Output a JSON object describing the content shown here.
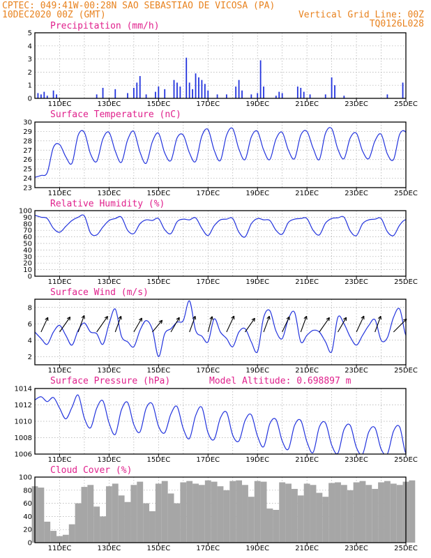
{
  "header": {
    "line1": "CPTEC:  049:41W-00:28N  SAO SEBASTIAO DE VICOSA (PA)",
    "line2_left": "10DEC2020 00Z (GMT)",
    "line2_right": "Vertical Grid Line: 00Z",
    "line3_right": "TQ0126L028",
    "text_color": "#e8821e"
  },
  "colors": {
    "title": "#e0208c",
    "series": "#2233dd",
    "cloud": "#a6a6a6",
    "wind_arrow": "#000000"
  },
  "x_axis": {
    "start": "10DEC2020 00Z",
    "end": "25DEC2020 00Z",
    "tick_labels": [
      "11DEC",
      "13DEC",
      "15DEC",
      "17DEC",
      "19DEC",
      "21DEC",
      "23DEC",
      "25DEC"
    ]
  },
  "chart_data": [
    {
      "type": "bar",
      "title": "Precipitation (mm/h)",
      "ylim": [
        0,
        5
      ],
      "yticks": [
        "0",
        "1",
        "2",
        "3",
        "4",
        "5"
      ],
      "grid": true,
      "bars": [
        {
          "x": "10DEC 03Z",
          "value": 0.4
        },
        {
          "x": "10DEC 06Z",
          "value": 0.3
        },
        {
          "x": "10DEC 09Z",
          "value": 0.5
        },
        {
          "x": "10DEC 12Z",
          "value": 0.2
        },
        {
          "x": "10DEC 18Z",
          "value": 0.6
        },
        {
          "x": "10DEC 21Z",
          "value": 0.3
        },
        {
          "x": "12DEC 12Z",
          "value": 0.3
        },
        {
          "x": "12DEC 18Z",
          "value": 0.8
        },
        {
          "x": "13DEC 06Z",
          "value": 0.7
        },
        {
          "x": "13DEC 18Z",
          "value": 0.4
        },
        {
          "x": "14DEC 00Z",
          "value": 0.8
        },
        {
          "x": "14DEC 03Z",
          "value": 1.2
        },
        {
          "x": "14DEC 06Z",
          "value": 1.7
        },
        {
          "x": "14DEC 12Z",
          "value": 0.3
        },
        {
          "x": "14DEC 21Z",
          "value": 0.5
        },
        {
          "x": "15DEC 00Z",
          "value": 0.9
        },
        {
          "x": "15DEC 06Z",
          "value": 0.7
        },
        {
          "x": "15DEC 15Z",
          "value": 1.4
        },
        {
          "x": "15DEC 18Z",
          "value": 1.2
        },
        {
          "x": "15DEC 21Z",
          "value": 0.9
        },
        {
          "x": "16DEC 03Z",
          "value": 3.1
        },
        {
          "x": "16DEC 06Z",
          "value": 1.2
        },
        {
          "x": "16DEC 09Z",
          "value": 0.7
        },
        {
          "x": "16DEC 12Z",
          "value": 1.9
        },
        {
          "x": "16DEC 15Z",
          "value": 1.6
        },
        {
          "x": "16DEC 18Z",
          "value": 1.4
        },
        {
          "x": "16DEC 21Z",
          "value": 1.1
        },
        {
          "x": "17DEC 00Z",
          "value": 0.6
        },
        {
          "x": "17DEC 09Z",
          "value": 0.3
        },
        {
          "x": "17DEC 18Z",
          "value": 0.3
        },
        {
          "x": "18DEC 03Z",
          "value": 0.9
        },
        {
          "x": "18DEC 06Z",
          "value": 1.4
        },
        {
          "x": "18DEC 09Z",
          "value": 0.6
        },
        {
          "x": "18DEC 18Z",
          "value": 0.3
        },
        {
          "x": "19DEC 00Z",
          "value": 0.4
        },
        {
          "x": "19DEC 03Z",
          "value": 2.9
        },
        {
          "x": "19DEC 06Z",
          "value": 0.9
        },
        {
          "x": "19DEC 18Z",
          "value": 0.2
        },
        {
          "x": "19DEC 21Z",
          "value": 0.5
        },
        {
          "x": "20DEC 00Z",
          "value": 0.4
        },
        {
          "x": "20DEC 15Z",
          "value": 0.9
        },
        {
          "x": "20DEC 18Z",
          "value": 0.8
        },
        {
          "x": "20DEC 21Z",
          "value": 0.5
        },
        {
          "x": "21DEC 03Z",
          "value": 0.3
        },
        {
          "x": "21DEC 18Z",
          "value": 0.3
        },
        {
          "x": "22DEC 00Z",
          "value": 1.6
        },
        {
          "x": "22DEC 03Z",
          "value": 1.0
        },
        {
          "x": "22DEC 12Z",
          "value": 0.2
        },
        {
          "x": "24DEC 06Z",
          "value": 0.3
        },
        {
          "x": "24DEC 21Z",
          "value": 1.2
        }
      ]
    },
    {
      "type": "line",
      "title": "Surface Temperature (nC)",
      "ylim": [
        23,
        30
      ],
      "yticks": [
        "23",
        "24",
        "25",
        "26",
        "27",
        "28",
        "29",
        "30"
      ],
      "grid": true,
      "series": [
        {
          "x_start": "10DEC 00Z",
          "step_hours": 6,
          "values": [
            24.1,
            24.3,
            24.6,
            27.3,
            27.6,
            26.3,
            25.6,
            28.6,
            28.9,
            26.6,
            25.8,
            28.2,
            28.9,
            26.9,
            25.7,
            28.1,
            29.0,
            26.8,
            25.6,
            27.9,
            28.8,
            26.7,
            25.9,
            28.3,
            28.6,
            26.7,
            25.8,
            28.5,
            29.2,
            27.0,
            25.9,
            28.6,
            29.3,
            27.1,
            26.0,
            28.4,
            29.0,
            27.0,
            26.0,
            28.2,
            28.9,
            27.0,
            26.1,
            28.6,
            29.0,
            27.2,
            26.0,
            28.8,
            29.3,
            27.1,
            26.1,
            28.3,
            28.8,
            26.9,
            26.1,
            28.0,
            28.7,
            26.6,
            26.0,
            28.7,
            28.9,
            27.0
          ]
        }
      ]
    },
    {
      "type": "line",
      "title": "Relative Humidity (%)",
      "ylim": [
        0,
        100
      ],
      "yticks": [
        "0",
        "10",
        "20",
        "30",
        "40",
        "50",
        "60",
        "70",
        "80",
        "90",
        "100"
      ],
      "grid": true,
      "series": [
        {
          "x_start": "10DEC 00Z",
          "step_hours": 6,
          "values": [
            93,
            90,
            88,
            73,
            67,
            76,
            85,
            90,
            92,
            66,
            63,
            75,
            85,
            88,
            90,
            70,
            65,
            80,
            86,
            85,
            88,
            71,
            65,
            83,
            87,
            86,
            89,
            73,
            62,
            77,
            86,
            87,
            88,
            67,
            60,
            80,
            88,
            86,
            85,
            70,
            64,
            82,
            87,
            88,
            88,
            70,
            63,
            81,
            88,
            89,
            90,
            69,
            62,
            80,
            86,
            87,
            88,
            68,
            62,
            78,
            86,
            77
          ]
        }
      ]
    },
    {
      "type": "line",
      "title": "Surface Wind (m/s)",
      "ylim": [
        1,
        9
      ],
      "yticks": [
        "2",
        "4",
        "6",
        "8"
      ],
      "grid": true,
      "series": [
        {
          "name": "speed",
          "x_start": "10DEC 00Z",
          "step_hours": 6,
          "values": [
            5.0,
            4.2,
            3.5,
            5.0,
            5.8,
            4.6,
            3.4,
            5.2,
            6.1,
            5.0,
            4.8,
            3.5,
            6.0,
            7.8,
            4.5,
            3.8,
            3.2,
            5.2,
            6.4,
            5.3,
            2.0,
            4.8,
            5.4,
            6.2,
            6.4,
            8.8,
            5.2,
            4.5,
            3.8,
            6.6,
            5.0,
            4.2,
            3.2,
            5.0,
            5.4,
            3.8,
            2.6,
            6.8,
            7.6,
            5.1,
            4.2,
            6.6,
            7.4,
            3.8,
            4.6,
            5.2,
            5.0,
            3.8,
            2.6,
            6.8,
            6.0,
            4.4,
            3.4,
            4.6,
            5.8,
            6.5,
            4.0,
            4.3,
            6.8,
            7.8,
            4.6,
            5.3
          ]
        },
        {
          "name": "vectors",
          "points": [
            {
              "x": "10DEC 06Z",
              "dir_deg": 205,
              "speed": 4.2
            },
            {
              "x": "11DEC 00Z",
              "dir_deg": 215,
              "speed": 4.8
            },
            {
              "x": "11DEC 18Z",
              "dir_deg": 200,
              "speed": 4.6
            },
            {
              "x": "12DEC 12Z",
              "dir_deg": 215,
              "speed": 5.0
            },
            {
              "x": "13DEC 06Z",
              "dir_deg": 200,
              "speed": 4.4
            },
            {
              "x": "14DEC 00Z",
              "dir_deg": 210,
              "speed": 4.2
            },
            {
              "x": "14DEC 18Z",
              "dir_deg": 220,
              "speed": 4.0
            },
            {
              "x": "15DEC 12Z",
              "dir_deg": 210,
              "speed": 4.4
            },
            {
              "x": "16DEC 06Z",
              "dir_deg": 200,
              "speed": 4.4
            },
            {
              "x": "17DEC 00Z",
              "dir_deg": 195,
              "speed": 4.2
            },
            {
              "x": "17DEC 18Z",
              "dir_deg": 205,
              "speed": 4.6
            },
            {
              "x": "18DEC 12Z",
              "dir_deg": 215,
              "speed": 4.4
            },
            {
              "x": "19DEC 06Z",
              "dir_deg": 200,
              "speed": 4.4
            },
            {
              "x": "20DEC 00Z",
              "dir_deg": 205,
              "speed": 4.4
            },
            {
              "x": "20DEC 18Z",
              "dir_deg": 200,
              "speed": 4.4
            },
            {
              "x": "21DEC 12Z",
              "dir_deg": 215,
              "speed": 4.6
            },
            {
              "x": "22DEC 06Z",
              "dir_deg": 210,
              "speed": 4.4
            },
            {
              "x": "23DEC 00Z",
              "dir_deg": 205,
              "speed": 4.6
            },
            {
              "x": "23DEC 18Z",
              "dir_deg": 200,
              "speed": 4.4
            },
            {
              "x": "24DEC 12Z",
              "dir_deg": 225,
              "speed": 4.8
            }
          ]
        }
      ]
    },
    {
      "type": "line",
      "title": "Surface Pressure (hPa)",
      "annotation": "Model Altitude: 0.698897 m",
      "ylim": [
        1006,
        1014
      ],
      "yticks": [
        "1006",
        "1008",
        "1010",
        "1012",
        "1014"
      ],
      "grid": true,
      "series": [
        {
          "x_start": "10DEC 00Z",
          "step_hours": 6,
          "values": [
            1012.6,
            1013.0,
            1012.4,
            1012.9,
            1011.6,
            1010.3,
            1011.7,
            1013.2,
            1010.4,
            1009.2,
            1011.6,
            1012.5,
            1009.8,
            1008.4,
            1011.4,
            1012.3,
            1009.6,
            1008.7,
            1011.6,
            1012.1,
            1009.4,
            1008.6,
            1010.9,
            1011.8,
            1009.1,
            1007.9,
            1010.7,
            1011.7,
            1008.6,
            1007.8,
            1010.4,
            1011.1,
            1008.3,
            1007.6,
            1010.1,
            1010.8,
            1008.2,
            1006.9,
            1009.7,
            1010.2,
            1007.6,
            1006.6,
            1009.5,
            1010.1,
            1007.5,
            1006.2,
            1009.3,
            1009.8,
            1007.1,
            1006.1,
            1009.0,
            1009.5,
            1006.8,
            1006.0,
            1008.7,
            1009.2,
            1006.6,
            1006.0,
            1008.8,
            1009.3,
            1006.1,
            1007.6
          ]
        }
      ]
    },
    {
      "type": "bar",
      "title": "Cloud Cover (%)",
      "ylim": [
        0,
        100
      ],
      "yticks": [
        "0",
        "20",
        "40",
        "60",
        "80",
        "100"
      ],
      "grid": true,
      "x_start": "10DEC 00Z",
      "step_hours": 6,
      "values": [
        86,
        84,
        32,
        18,
        10,
        12,
        28,
        60,
        85,
        88,
        55,
        40,
        86,
        90,
        72,
        62,
        88,
        93,
        60,
        48,
        90,
        94,
        75,
        60,
        92,
        94,
        90,
        88,
        95,
        93,
        86,
        80,
        94,
        95,
        88,
        70,
        94,
        93,
        52,
        50,
        92,
        90,
        82,
        72,
        90,
        88,
        76,
        70,
        91,
        92,
        88,
        80,
        92,
        94,
        88,
        82,
        92,
        94,
        90,
        88,
        93,
        95
      ]
    }
  ]
}
